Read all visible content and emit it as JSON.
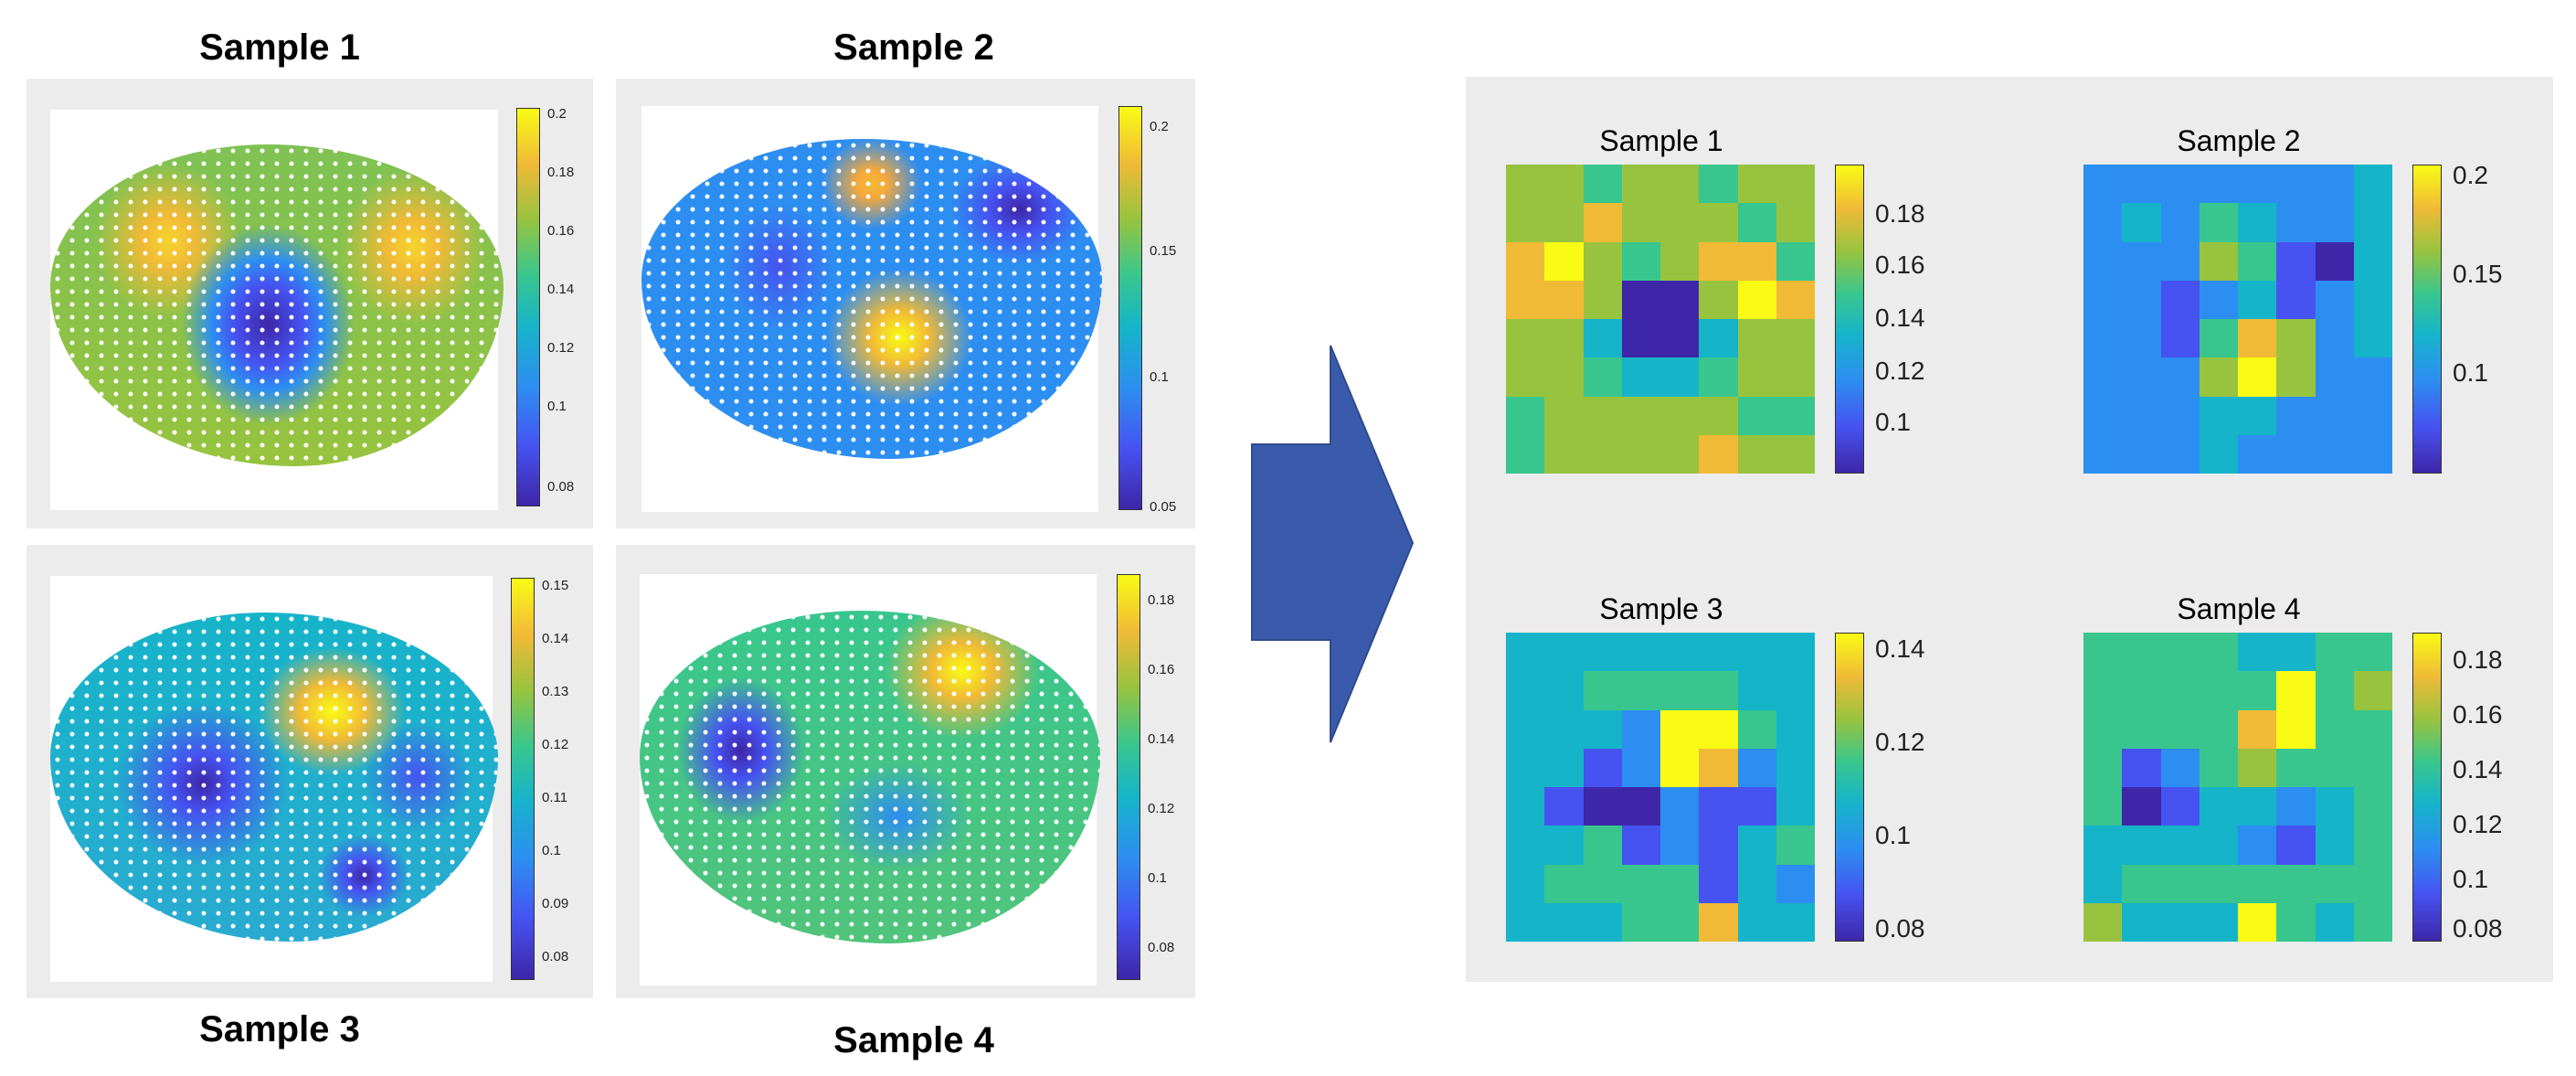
{
  "left_samples": [
    {
      "title": "Sample 1",
      "ticks": [
        "0.2",
        "0.18",
        "0.16",
        "0.14",
        "0.12",
        "0.1",
        "0.08"
      ]
    },
    {
      "title": "Sample 2",
      "ticks": [
        "0.2",
        "0.15",
        "0.1",
        "0.05"
      ]
    },
    {
      "title": "Sample 3",
      "ticks": [
        "0.15",
        "0.14",
        "0.13",
        "0.12",
        "0.11",
        "0.1",
        "0.09",
        "0.08"
      ]
    },
    {
      "title": "Sample 4",
      "ticks": [
        "0.18",
        "0.16",
        "0.14",
        "0.12",
        "0.1",
        "0.08"
      ]
    }
  ],
  "right_samples": [
    {
      "title": "Sample 1",
      "ticks": [
        "0.18",
        "0.16",
        "0.14",
        "0.12",
        "0.1"
      ]
    },
    {
      "title": "Sample 2",
      "ticks": [
        "0.2",
        "0.15",
        "0.1"
      ]
    },
    {
      "title": "Sample 3",
      "ticks": [
        "0.14",
        "0.12",
        "0.1",
        "0.08"
      ]
    },
    {
      "title": "Sample 4",
      "ticks": [
        "0.18",
        "0.16",
        "0.14",
        "0.12",
        "0.1",
        "0.08"
      ]
    }
  ],
  "colors": {
    "arrow": "#3a5bab",
    "panel_bg": "#ececec",
    "colormap": [
      "#3e26a8",
      "#4653f1",
      "#2d8ef1",
      "#16b4c9",
      "#38c68e",
      "#97c33f",
      "#f0ba36",
      "#f9fb15"
    ]
  },
  "heatmaps": [
    [
      [
        5,
        5,
        4,
        5,
        5,
        4,
        5,
        5
      ],
      [
        5,
        5,
        6,
        5,
        5,
        5,
        4,
        5
      ],
      [
        6,
        7,
        5,
        4,
        5,
        6,
        6,
        4
      ],
      [
        6,
        6,
        5,
        0,
        0,
        5,
        7,
        6
      ],
      [
        5,
        5,
        3,
        0,
        0,
        3,
        5,
        5
      ],
      [
        5,
        5,
        4,
        3,
        3,
        4,
        5,
        5
      ],
      [
        4,
        5,
        5,
        5,
        5,
        5,
        4,
        4
      ],
      [
        4,
        5,
        5,
        5,
        5,
        6,
        5,
        5
      ]
    ],
    [
      [
        2,
        2,
        2,
        2,
        2,
        2,
        2,
        3
      ],
      [
        2,
        3,
        2,
        4,
        3,
        2,
        2,
        3
      ],
      [
        2,
        2,
        2,
        5,
        4,
        1,
        0,
        3
      ],
      [
        2,
        2,
        1,
        2,
        3,
        1,
        2,
        3
      ],
      [
        2,
        2,
        1,
        4,
        6,
        5,
        2,
        3
      ],
      [
        2,
        2,
        2,
        5,
        7,
        5,
        2,
        2
      ],
      [
        2,
        2,
        2,
        3,
        3,
        2,
        2,
        2
      ],
      [
        2,
        2,
        2,
        3,
        2,
        2,
        2,
        2
      ]
    ],
    [
      [
        3,
        3,
        3,
        3,
        3,
        3,
        3,
        3
      ],
      [
        3,
        3,
        4,
        4,
        4,
        4,
        3,
        3
      ],
      [
        3,
        3,
        3,
        2,
        7,
        7,
        4,
        3
      ],
      [
        3,
        3,
        1,
        2,
        7,
        6,
        2,
        3
      ],
      [
        3,
        1,
        0,
        0,
        2,
        1,
        1,
        3
      ],
      [
        3,
        3,
        4,
        1,
        2,
        1,
        3,
        4
      ],
      [
        3,
        4,
        4,
        4,
        4,
        1,
        3,
        2
      ],
      [
        3,
        3,
        3,
        4,
        4,
        6,
        3,
        3
      ]
    ],
    [
      [
        4,
        4,
        4,
        4,
        3,
        3,
        4,
        4
      ],
      [
        4,
        4,
        4,
        4,
        4,
        7,
        4,
        5
      ],
      [
        4,
        4,
        4,
        4,
        6,
        7,
        4,
        4
      ],
      [
        4,
        1,
        2,
        4,
        5,
        4,
        4,
        4
      ],
      [
        4,
        0,
        1,
        3,
        3,
        2,
        3,
        4
      ],
      [
        3,
        3,
        3,
        3,
        2,
        1,
        3,
        4
      ],
      [
        3,
        4,
        4,
        4,
        4,
        4,
        4,
        4
      ],
      [
        5,
        3,
        3,
        3,
        7,
        4,
        3,
        4
      ]
    ]
  ]
}
